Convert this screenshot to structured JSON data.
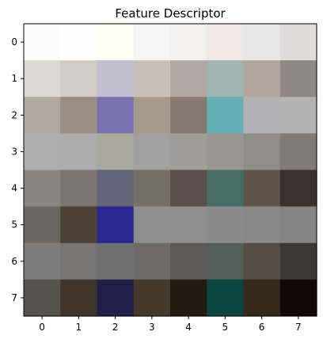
{
  "chart_data": {
    "type": "heatmap",
    "title": "Feature Descriptor",
    "xlabel": "",
    "ylabel": "",
    "x_ticks": [
      "0",
      "1",
      "2",
      "3",
      "4",
      "5",
      "6",
      "7"
    ],
    "y_ticks": [
      "0",
      "1",
      "2",
      "3",
      "4",
      "5",
      "6",
      "7"
    ],
    "rows": 8,
    "cols": 8,
    "grid": false,
    "cells": [
      [
        "#fbfbfb",
        "#fefefe",
        "#fffff5",
        "#f5f5f5",
        "#f3f2f1",
        "#f3e8e8",
        "#e6e6e6",
        "#e1dcdb"
      ],
      [
        "#d9d8d5",
        "#d0cbc6",
        "#c1bfcf",
        "#c9c1b7",
        "#b2a8a3",
        "#9fb5b2",
        "#b3a59b",
        "#8f8883"
      ],
      [
        "#b0a8a1",
        "#9b8e82",
        "#7a73b0",
        "#a69a8d",
        "#857870",
        "#66b0b3",
        "#b3b2b5",
        "#b3b3b3"
      ],
      [
        "#aeaeae",
        "#acacac",
        "#a8a89c",
        "#a1a1a1",
        "#9f9e9d",
        "#9a9693",
        "#8f8d8b",
        "#7d7a77"
      ],
      [
        "#898580",
        "#7c7571",
        "#666478",
        "#767068",
        "#5b4f4b",
        "#446d68",
        "#605448",
        "#3b312c"
      ],
      [
        "#6c6861",
        "#4f4035",
        "#292890",
        "#8f8f8f",
        "#8e8e8e",
        "#8b8b8b",
        "#898989",
        "#868686"
      ],
      [
        "#7c7c7c",
        "#777573",
        "#6f6f6f",
        "#6d6b67",
        "#5f5854",
        "#525e5a",
        "#554c45",
        "#3b3836"
      ],
      [
        "#56524d",
        "#403429",
        "#201f48",
        "#433829",
        "#231a12",
        "#0b4340",
        "#372a1c",
        "#120805"
      ]
    ]
  }
}
